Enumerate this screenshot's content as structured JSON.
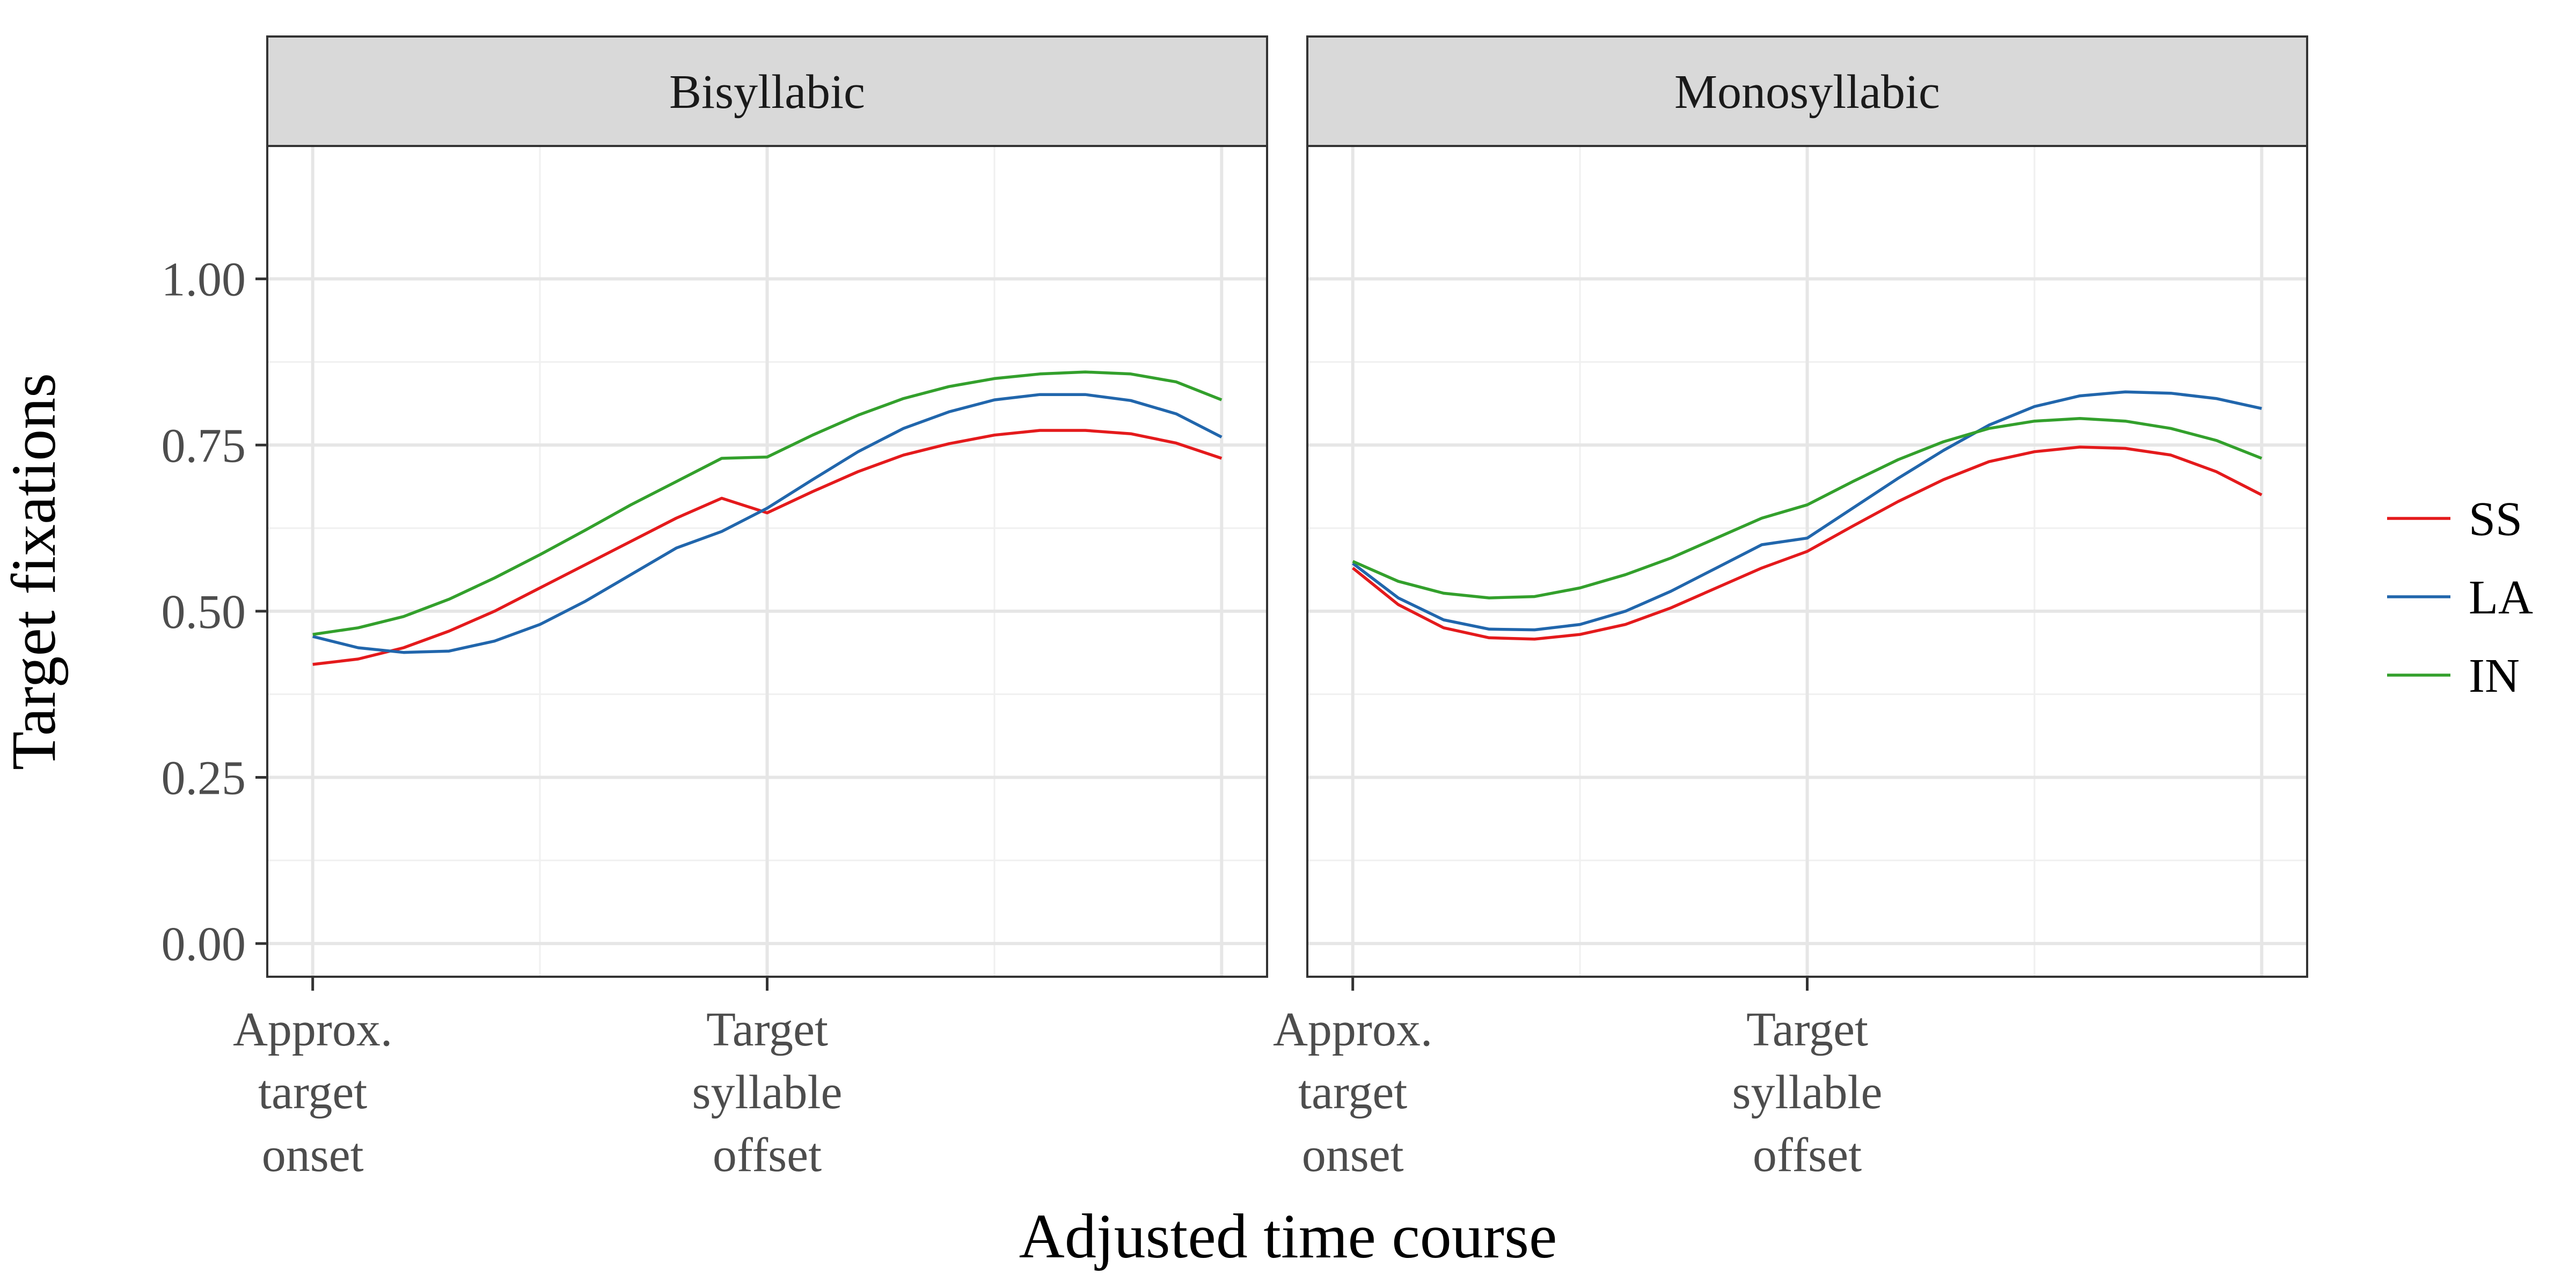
{
  "chart_data": {
    "type": "line",
    "xlabel": "Adjusted time course",
    "ylabel": "Target fixations",
    "ylim": [
      -0.05,
      1.2
    ],
    "xlim": [
      -0.1,
      2.1
    ],
    "y_ticks": [
      0,
      0.25,
      0.5,
      0.75,
      1.0
    ],
    "y_tick_labels": [
      "0.00",
      "0.25",
      "0.50",
      "0.75",
      "1.00"
    ],
    "x_ticks": [
      0,
      1
    ],
    "x_tick_labels": [
      [
        "Approx.",
        "target",
        "onset"
      ],
      [
        "Target",
        "syllable",
        "offset"
      ]
    ],
    "grid": true,
    "legend_position": "right",
    "panels": [
      {
        "title": "Bisyllabic",
        "series": [
          {
            "name": "SS",
            "color": "#e41a1c",
            "x": [
              0,
              0.1,
              0.2,
              0.3,
              0.4,
              0.5,
              0.6,
              0.7,
              0.8,
              0.9,
              1.0,
              1.1,
              1.2,
              1.3,
              1.4,
              1.5,
              1.6,
              1.7,
              1.8,
              1.9,
              2.0
            ],
            "y": [
              0.42,
              0.428,
              0.445,
              0.47,
              0.5,
              0.535,
              0.57,
              0.605,
              0.64,
              0.67,
              0.648,
              0.68,
              0.71,
              0.735,
              0.752,
              0.765,
              0.772,
              0.772,
              0.767,
              0.753,
              0.73
            ]
          },
          {
            "name": "LA",
            "color": "#2166ac",
            "x": [
              0,
              0.1,
              0.2,
              0.3,
              0.4,
              0.5,
              0.6,
              0.7,
              0.8,
              0.9,
              1.0,
              1.1,
              1.2,
              1.3,
              1.4,
              1.5,
              1.6,
              1.7,
              1.8,
              1.9,
              2.0
            ],
            "y": [
              0.462,
              0.445,
              0.438,
              0.44,
              0.455,
              0.48,
              0.515,
              0.555,
              0.595,
              0.62,
              0.655,
              0.698,
              0.74,
              0.775,
              0.8,
              0.818,
              0.826,
              0.826,
              0.817,
              0.797,
              0.762
            ]
          },
          {
            "name": "IN",
            "color": "#33a02c",
            "x": [
              0,
              0.1,
              0.2,
              0.3,
              0.4,
              0.5,
              0.6,
              0.7,
              0.8,
              0.9,
              1.0,
              1.1,
              1.2,
              1.3,
              1.4,
              1.5,
              1.6,
              1.7,
              1.8,
              1.9,
              2.0
            ],
            "y": [
              0.465,
              0.475,
              0.492,
              0.518,
              0.55,
              0.585,
              0.622,
              0.66,
              0.695,
              0.73,
              0.732,
              0.765,
              0.795,
              0.82,
              0.838,
              0.85,
              0.857,
              0.86,
              0.857,
              0.845,
              0.818
            ]
          }
        ]
      },
      {
        "title": "Monosyllabic",
        "series": [
          {
            "name": "SS",
            "color": "#e41a1c",
            "x": [
              0,
              0.1,
              0.2,
              0.3,
              0.4,
              0.5,
              0.6,
              0.7,
              0.8,
              0.9,
              1.0,
              1.1,
              1.2,
              1.3,
              1.4,
              1.5,
              1.6,
              1.7,
              1.8,
              1.9,
              2.0
            ],
            "y": [
              0.565,
              0.51,
              0.475,
              0.46,
              0.458,
              0.465,
              0.48,
              0.505,
              0.535,
              0.565,
              0.59,
              0.628,
              0.665,
              0.698,
              0.725,
              0.74,
              0.747,
              0.745,
              0.735,
              0.71,
              0.675
            ]
          },
          {
            "name": "LA",
            "color": "#2166ac",
            "x": [
              0,
              0.1,
              0.2,
              0.3,
              0.4,
              0.5,
              0.6,
              0.7,
              0.8,
              0.9,
              1.0,
              1.1,
              1.2,
              1.3,
              1.4,
              1.5,
              1.6,
              1.7,
              1.8,
              1.9,
              2.0
            ],
            "y": [
              0.572,
              0.52,
              0.487,
              0.473,
              0.472,
              0.48,
              0.5,
              0.53,
              0.565,
              0.6,
              0.61,
              0.655,
              0.7,
              0.742,
              0.78,
              0.808,
              0.824,
              0.83,
              0.828,
              0.82,
              0.805
            ]
          },
          {
            "name": "IN",
            "color": "#33a02c",
            "x": [
              0,
              0.1,
              0.2,
              0.3,
              0.4,
              0.5,
              0.6,
              0.7,
              0.8,
              0.9,
              1.0,
              1.1,
              1.2,
              1.3,
              1.4,
              1.5,
              1.6,
              1.7,
              1.8,
              1.9,
              2.0
            ],
            "y": [
              0.575,
              0.545,
              0.527,
              0.52,
              0.522,
              0.535,
              0.555,
              0.58,
              0.61,
              0.64,
              0.66,
              0.695,
              0.728,
              0.755,
              0.775,
              0.786,
              0.79,
              0.786,
              0.775,
              0.757,
              0.73
            ]
          }
        ]
      }
    ],
    "legend": [
      {
        "name": "SS",
        "color": "#e41a1c"
      },
      {
        "name": "LA",
        "color": "#2166ac"
      },
      {
        "name": "IN",
        "color": "#33a02c"
      }
    ]
  }
}
